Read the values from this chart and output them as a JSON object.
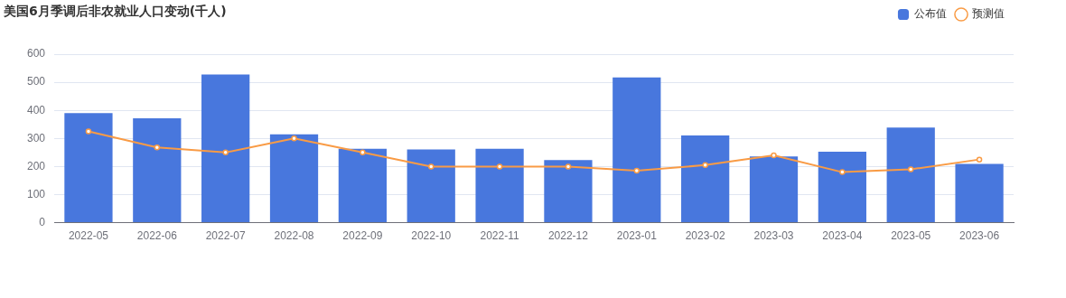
{
  "chart_data": {
    "type": "bar",
    "title": "美国6月季调后非农就业人口变动(千人)",
    "categories": [
      "2022-05",
      "2022-06",
      "2022-07",
      "2022-08",
      "2022-09",
      "2022-10",
      "2022-11",
      "2022-12",
      "2023-01",
      "2023-02",
      "2023-03",
      "2023-04",
      "2023-05",
      "2023-06"
    ],
    "series": [
      {
        "name": "公布值",
        "color": "#4877dd",
        "values": [
          390,
          372,
          528,
          315,
          263,
          261,
          263,
          223,
          517,
          311,
          236,
          253,
          339,
          209
        ]
      },
      {
        "name": "预测值",
        "type": "line",
        "color": "#f99b45",
        "values": [
          325,
          268,
          250,
          300,
          250,
          200,
          200,
          200,
          185,
          205,
          240,
          180,
          190,
          225
        ]
      }
    ],
    "ylim": [
      0,
      600
    ],
    "yticks": [
      0,
      100,
      200,
      300,
      400,
      500,
      600
    ],
    "grid": "y",
    "legend": "top right",
    "marker": "circle",
    "line_style": "solid"
  }
}
